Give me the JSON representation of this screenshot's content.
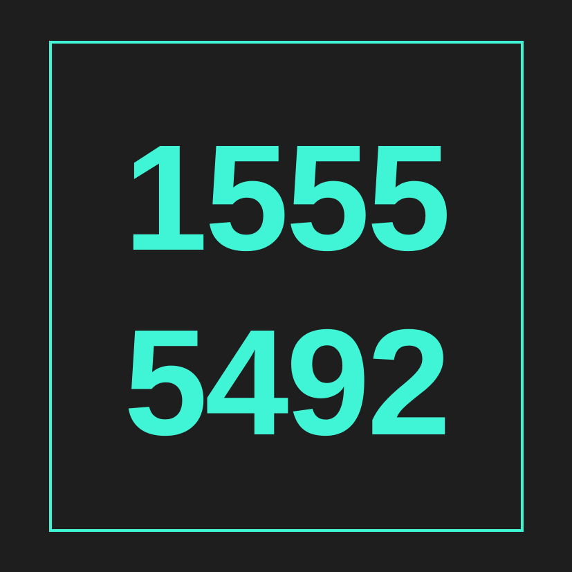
{
  "code": {
    "line1": "1555",
    "line2": "5492"
  },
  "colors": {
    "background": "#1e1e1e",
    "accent": "#40f5d6"
  }
}
